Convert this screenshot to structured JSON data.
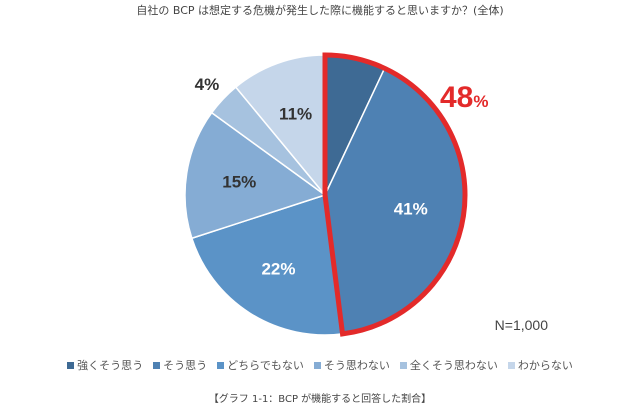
{
  "chart_data": {
    "type": "pie",
    "title": "自社の BCP は想定する危機が発生した際に機能すると思いますか？(全体)",
    "slices": [
      {
        "label": "強くそう思う",
        "value": 7,
        "display": "7%",
        "color": "#3e6a94"
      },
      {
        "label": "そう思う",
        "value": 41,
        "display": "41%",
        "color": "#4e81b3"
      },
      {
        "label": "どちらでもない",
        "value": 22,
        "display": "22%",
        "color": "#5b93c7"
      },
      {
        "label": "そう思わない",
        "value": 15,
        "display": "15%",
        "color": "#85acd4"
      },
      {
        "label": "全くそう思わない",
        "value": 4,
        "display": "4%",
        "color": "#a6c2df"
      },
      {
        "label": "わからない",
        "value": 11,
        "display": "11%",
        "color": "#c5d6ea"
      }
    ],
    "highlight": {
      "value_text": "48",
      "unit": "%",
      "color": "#e32a2a",
      "covers": [
        "強くそう思う",
        "そう思う"
      ]
    },
    "note": "N=1,000",
    "legend_position": "bottom"
  },
  "caption": "【グラフ 1-1：BCP が機能すると回答した割合】"
}
